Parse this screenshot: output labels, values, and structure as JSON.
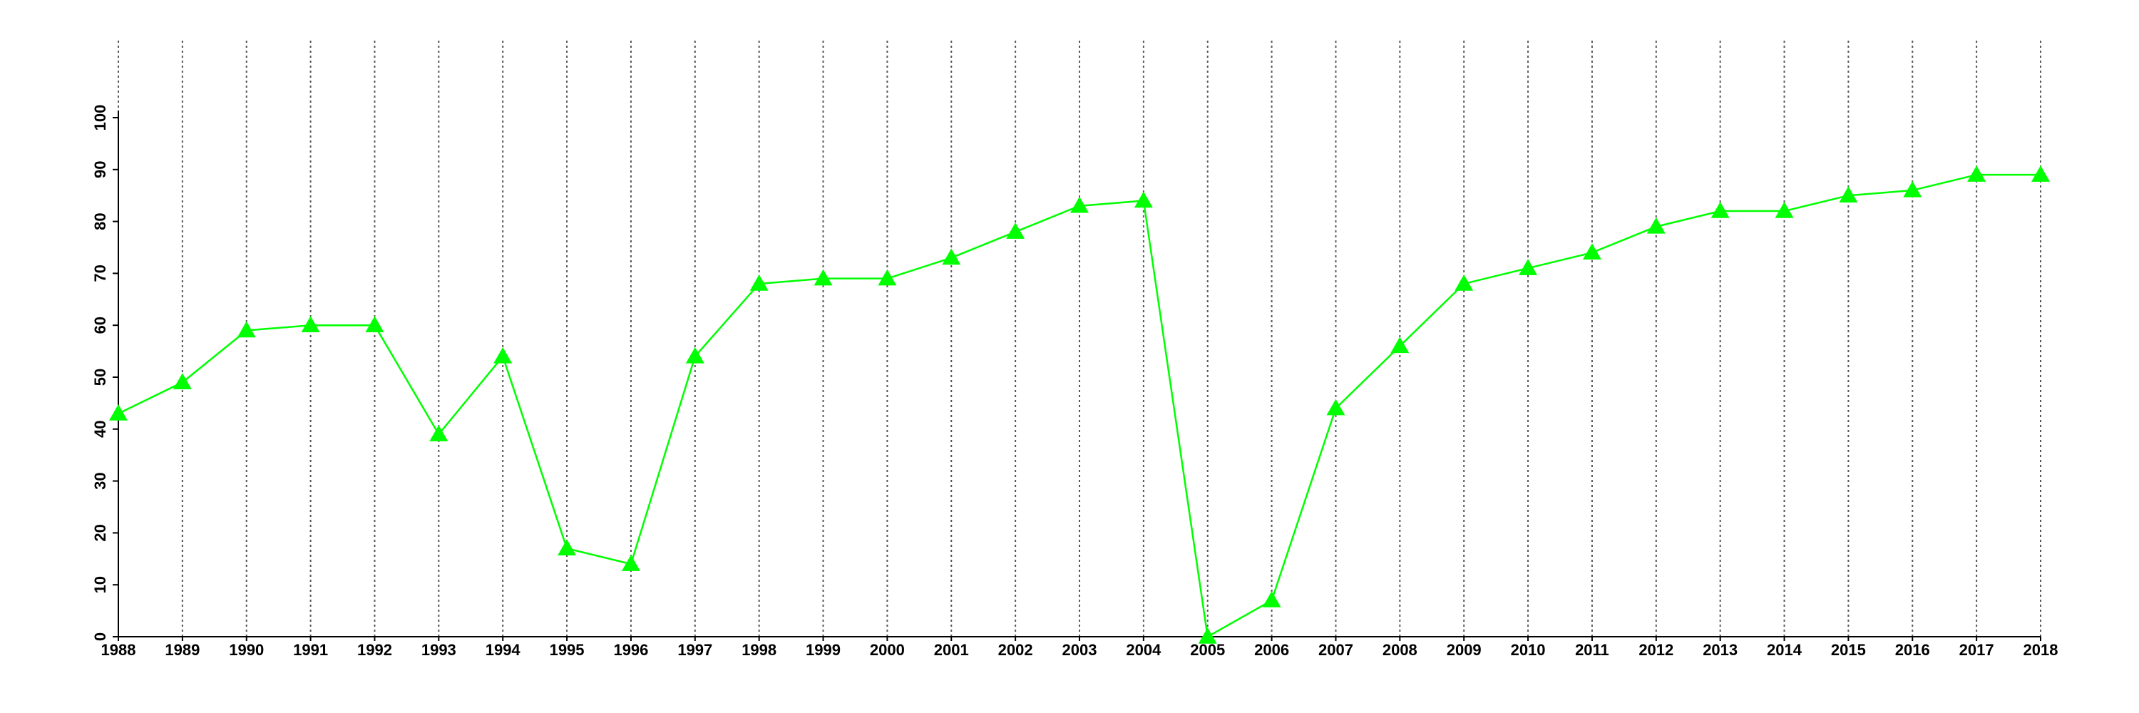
{
  "chart_data": {
    "type": "line",
    "x": [
      1988,
      1989,
      1990,
      1991,
      1992,
      1993,
      1994,
      1995,
      1996,
      1997,
      1998,
      1999,
      2000,
      2001,
      2002,
      2003,
      2004,
      2005,
      2006,
      2007,
      2008,
      2009,
      2010,
      2011,
      2012,
      2013,
      2014,
      2015,
      2016,
      2017,
      2018
    ],
    "series": [
      {
        "color": "#00ff00",
        "values": [
          43,
          49,
          59,
          60,
          60,
          39,
          54,
          17,
          14,
          54,
          68,
          69,
          69,
          73,
          78,
          83,
          84,
          0,
          7,
          44,
          56,
          68,
          71,
          74,
          79,
          82,
          82,
          85,
          86,
          89,
          89
        ]
      }
    ],
    "xlim": [
      1988,
      2018
    ],
    "xticks": [
      1988,
      1989,
      1990,
      1991,
      1992,
      1993,
      1994,
      1995,
      1996,
      1997,
      1998,
      1999,
      2000,
      2001,
      2002,
      2003,
      2004,
      2005,
      2006,
      2007,
      2008,
      2009,
      2010,
      2011,
      2012,
      2013,
      2014,
      2015,
      2016,
      2017,
      2018
    ],
    "ylim": [
      0,
      100
    ],
    "yticks": [
      0,
      10,
      20,
      30,
      40,
      50,
      60,
      70,
      80,
      90,
      100
    ],
    "grid": "x"
  }
}
